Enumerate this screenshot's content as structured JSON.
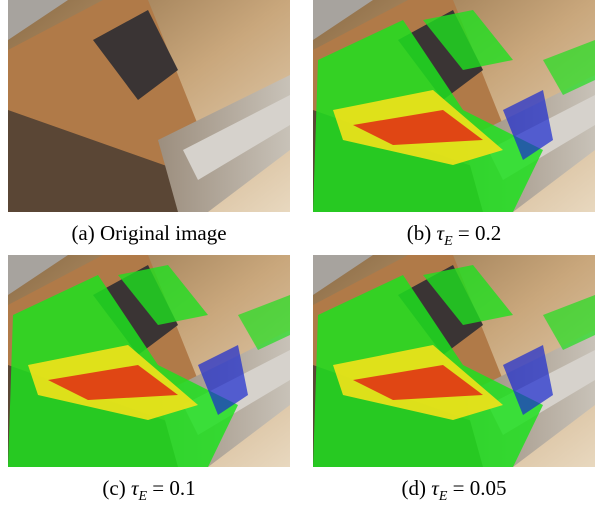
{
  "panels": [
    {
      "label": "(a)",
      "caption": "Original image"
    },
    {
      "label": "(b)",
      "symbol": "τ",
      "subscript": "E",
      "relation": "= 0.2"
    },
    {
      "label": "(c)",
      "symbol": "τ",
      "subscript": "E",
      "relation": "= 0.1"
    },
    {
      "label": "(d)",
      "symbol": "τ",
      "subscript": "E",
      "relation": "= 0.05"
    }
  ]
}
